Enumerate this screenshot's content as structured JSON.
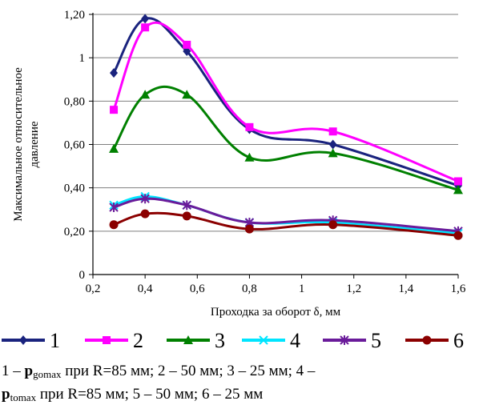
{
  "chart_data": {
    "type": "line",
    "xlabel": "Проходка за оборот δ, мм",
    "ylabel_lines": [
      "Максимальное относительное",
      "давление"
    ],
    "xlim": [
      0.2,
      1.6
    ],
    "ylim": [
      0,
      1.2
    ],
    "xticks": [
      0.2,
      0.4,
      0.6,
      0.8,
      1.0,
      1.2,
      1.4,
      1.6
    ],
    "xtick_labels": [
      "0,2",
      "0,4",
      "0,6",
      "0,8",
      "1",
      "1,2",
      "1,4",
      "1,6"
    ],
    "yticks": [
      0,
      0.2,
      0.4,
      0.6,
      0.8,
      1.0,
      1.2
    ],
    "ytick_labels": [
      "0",
      "0,20",
      "0,40",
      "0,60",
      "0,80",
      "1",
      "1,20"
    ],
    "grid": "horizontal",
    "legend_position": "bottom",
    "x": [
      0.28,
      0.4,
      0.56,
      0.8,
      1.12,
      1.6
    ],
    "series": [
      {
        "name": "1",
        "color": "#1a237e",
        "marker": "diamond",
        "values": [
          0.93,
          1.18,
          1.03,
          0.67,
          0.6,
          0.41
        ]
      },
      {
        "name": "2",
        "color": "#ff00ff",
        "marker": "square",
        "values": [
          0.76,
          1.14,
          1.06,
          0.68,
          0.66,
          0.43
        ]
      },
      {
        "name": "3",
        "color": "#008000",
        "marker": "triangle",
        "values": [
          0.58,
          0.83,
          0.83,
          0.54,
          0.56,
          0.39
        ]
      },
      {
        "name": "4",
        "color": "#00e5ff",
        "marker": "x",
        "values": [
          0.32,
          0.36,
          0.32,
          0.24,
          0.24,
          0.19
        ]
      },
      {
        "name": "5",
        "color": "#6a1b9a",
        "marker": "star",
        "values": [
          0.31,
          0.35,
          0.32,
          0.24,
          0.25,
          0.2
        ]
      },
      {
        "name": "6",
        "color": "#8b0000",
        "marker": "circle",
        "values": [
          0.23,
          0.28,
          0.27,
          0.21,
          0.23,
          0.18
        ]
      }
    ]
  },
  "caption": {
    "line1_prefix": "1 – ",
    "p_symbol": "p",
    "sub_gomax": "gomax",
    "line1_mid": " при R=85 мм; 2 – 50 мм; 3 – 25 мм; 4 –",
    "sub_tomax": "tomax",
    "line2_rest": " при R=85 мм; 5 – 50 мм; 6 – 25 мм"
  }
}
